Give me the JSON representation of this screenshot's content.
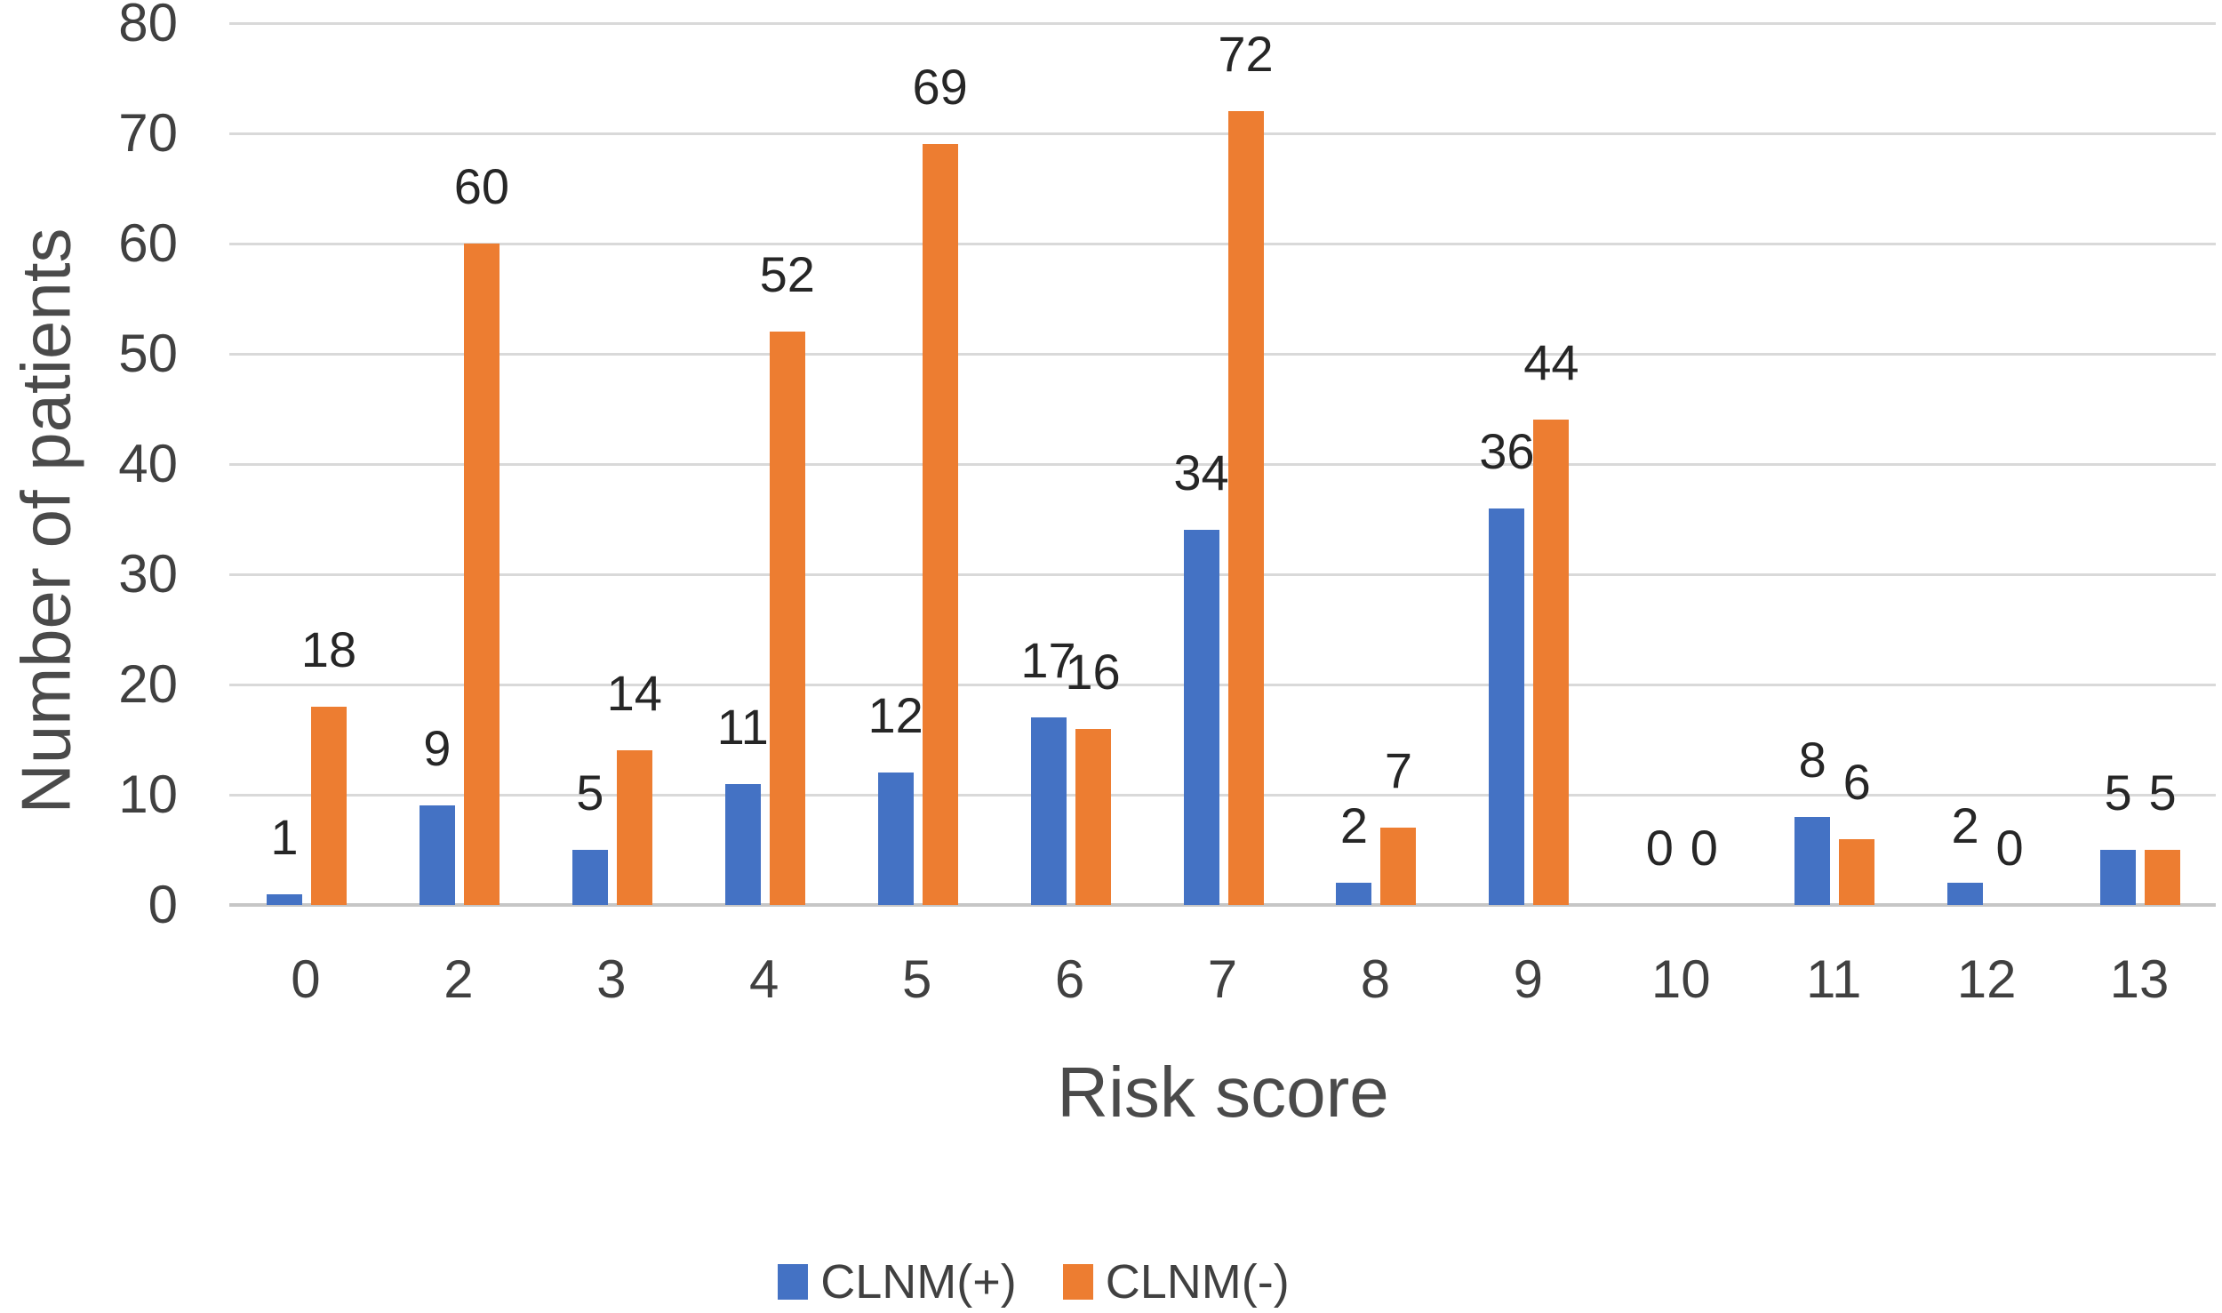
{
  "chart_data": {
    "type": "bar",
    "title": "",
    "xlabel": "Risk score",
    "ylabel": "Number of patients",
    "categories": [
      "0",
      "2",
      "3",
      "4",
      "5",
      "6",
      "7",
      "8",
      "9",
      "10",
      "11",
      "12",
      "13"
    ],
    "series": [
      {
        "name": "CLNM(+)",
        "color": "#4472C4",
        "values": [
          1,
          9,
          5,
          11,
          12,
          17,
          34,
          2,
          36,
          0,
          8,
          2,
          5
        ]
      },
      {
        "name": "CLNM(-)",
        "color": "#ED7D31",
        "values": [
          18,
          60,
          14,
          52,
          69,
          16,
          72,
          7,
          44,
          0,
          6,
          0,
          5
        ]
      }
    ],
    "ylim": [
      0,
      80
    ],
    "yticks": [
      0,
      10,
      20,
      30,
      40,
      50,
      60,
      70,
      80
    ],
    "grid": true,
    "data_labels": true,
    "legend_position": "bottom"
  },
  "colors": {
    "grid": "#D9D9D9",
    "axis_line": "#C6C6C6",
    "tick_text": "#404040",
    "title_text": "#4A4A4A",
    "data_label_text": "#262626",
    "background": "#FFFFFF"
  }
}
